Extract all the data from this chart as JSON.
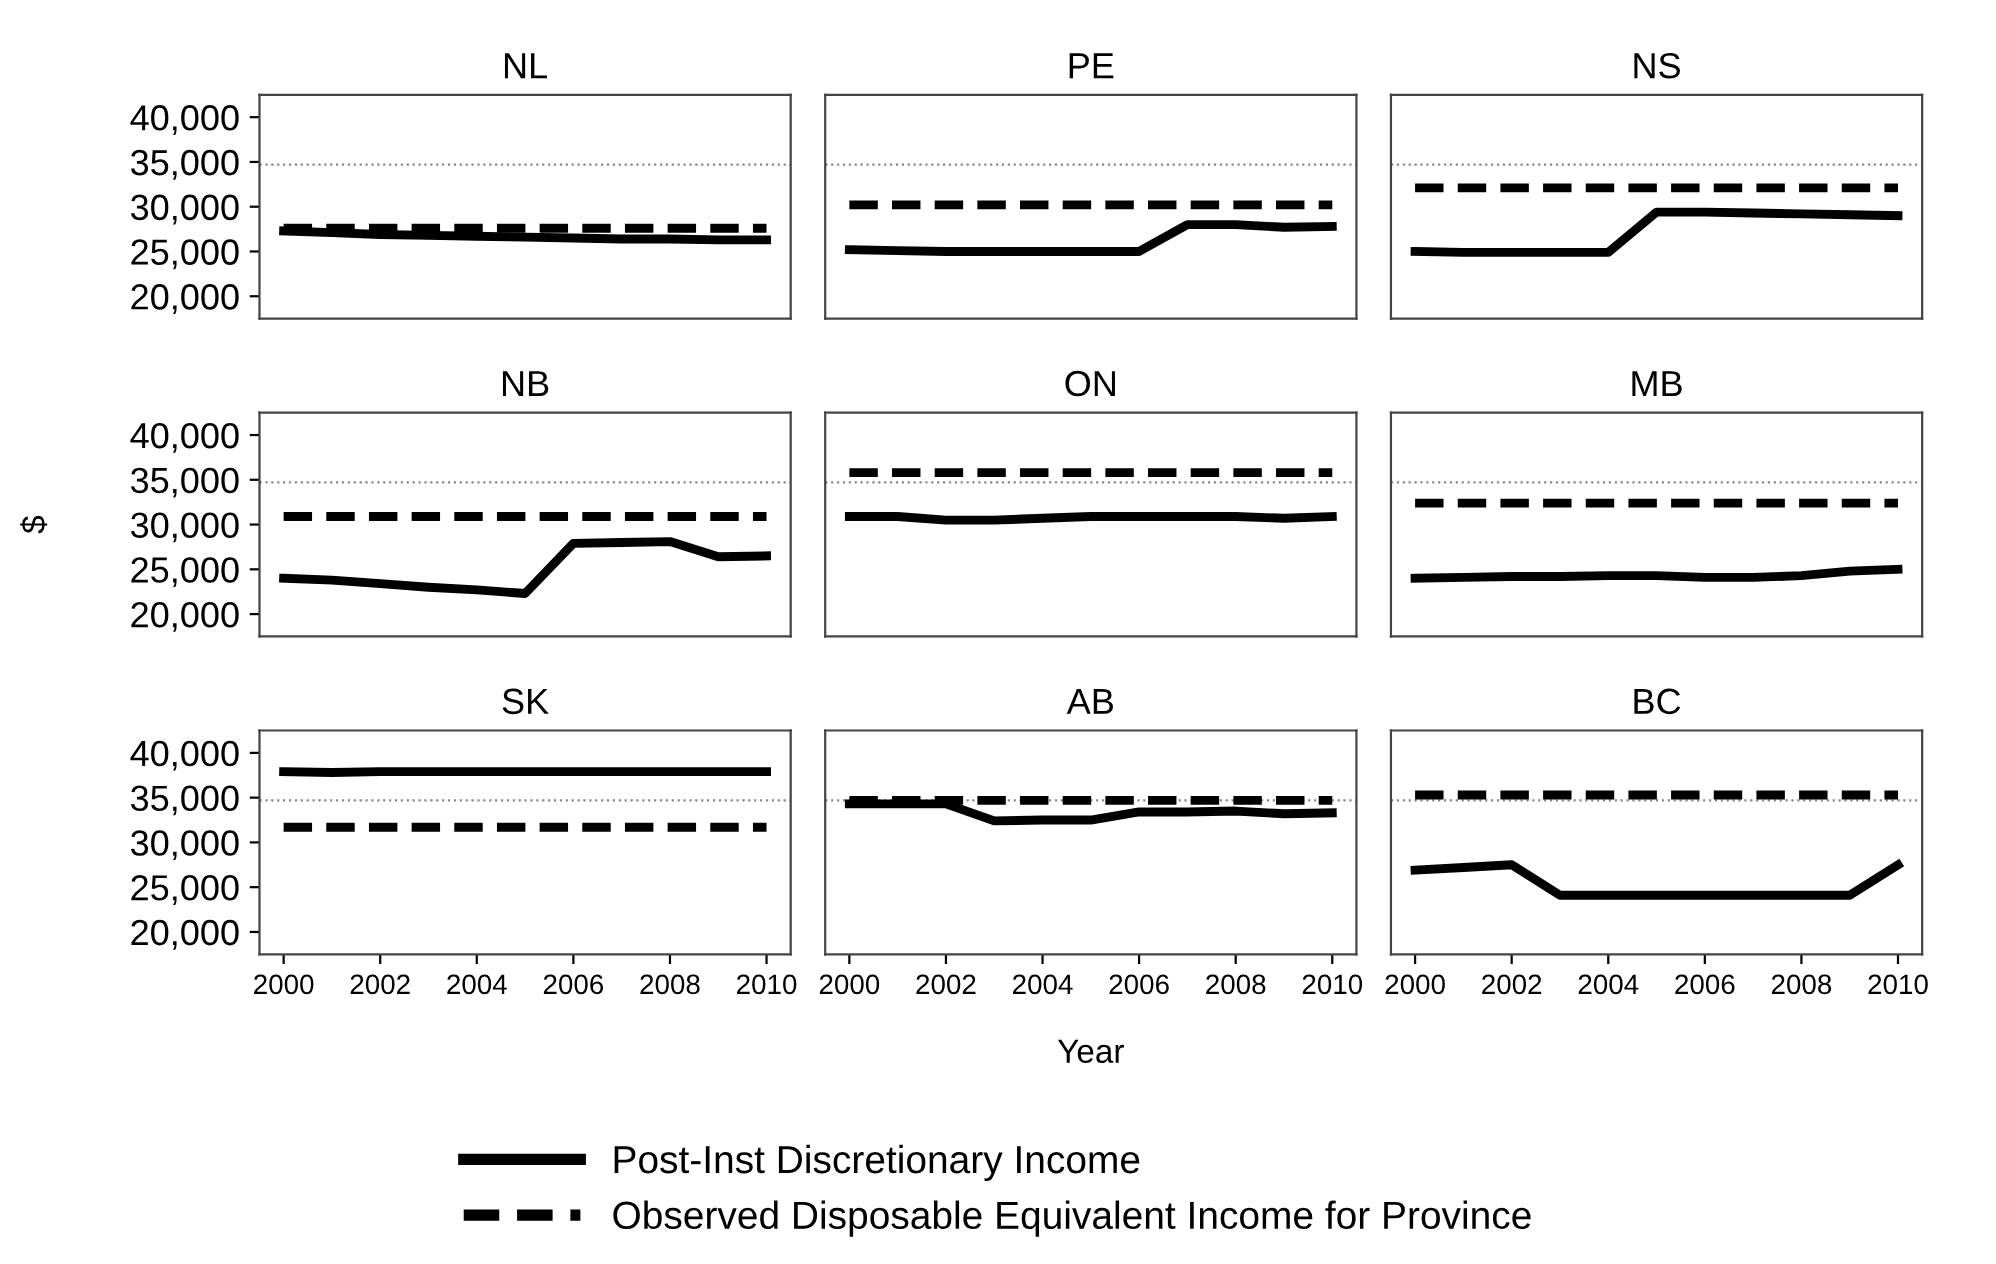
{
  "chart_data": [
    {
      "type": "line",
      "title": "NL",
      "x": [
        2000,
        2001,
        2002,
        2003,
        2004,
        2005,
        2006,
        2007,
        2008,
        2009,
        2010
      ],
      "xlim": [
        1999.5,
        2010.5
      ],
      "xticks": [
        2000,
        2002,
        2004,
        2006,
        2008,
        2010
      ],
      "ylim": [
        17500,
        42500
      ],
      "yticks": [
        {
          "value": 20000,
          "label": "20,000"
        },
        {
          "value": 25000,
          "label": "25,000"
        },
        {
          "value": 30000,
          "label": "30,000"
        },
        {
          "value": 35000,
          "label": "35,000"
        },
        {
          "value": 40000,
          "label": "40,000"
        }
      ],
      "tick_labels": "y",
      "grid": false,
      "legend": "bottom",
      "ref_lines": [
        {
          "axis": "y",
          "value": 34700,
          "color": "#888888",
          "line_style": "dotted"
        }
      ],
      "series": [
        {
          "name": "Post-Inst Discretionary Income",
          "color": "#000000",
          "line_style": "solid",
          "values": [
            27300,
            27100,
            26900,
            26800,
            26700,
            26600,
            26500,
            26400,
            26400,
            26300,
            26300
          ]
        },
        {
          "name": "Observed Disposable Equivalent Income for Province",
          "color": "#000000",
          "line_style": "dashed",
          "values": [
            27600,
            27600,
            27600,
            27600,
            27600,
            27600,
            27600,
            27600,
            27600,
            27600,
            27600
          ]
        }
      ]
    },
    {
      "type": "line",
      "title": "PE",
      "x": [
        2000,
        2001,
        2002,
        2003,
        2004,
        2005,
        2006,
        2007,
        2008,
        2009,
        2010
      ],
      "xlim": [
        1999.5,
        2010.5
      ],
      "xticks": [
        2000,
        2002,
        2004,
        2006,
        2008,
        2010
      ],
      "ylim": [
        17500,
        42500
      ],
      "yticks": [
        {
          "value": 20000,
          "label": "20,000"
        },
        {
          "value": 25000,
          "label": "25,000"
        },
        {
          "value": 30000,
          "label": "30,000"
        },
        {
          "value": 35000,
          "label": "35,000"
        },
        {
          "value": 40000,
          "label": "40,000"
        }
      ],
      "tick_labels": false,
      "grid": false,
      "legend": "bottom",
      "ref_lines": [
        {
          "axis": "y",
          "value": 34700,
          "color": "#888888",
          "line_style": "dotted"
        }
      ],
      "series": [
        {
          "name": "Post-Inst Discretionary Income",
          "color": "#000000",
          "line_style": "solid",
          "values": [
            25200,
            25100,
            25000,
            25000,
            25000,
            25000,
            25000,
            28000,
            28000,
            27700,
            27800
          ]
        },
        {
          "name": "Observed Disposable Equivalent Income for Province",
          "color": "#000000",
          "line_style": "dashed",
          "values": [
            30200,
            30200,
            30200,
            30200,
            30200,
            30200,
            30200,
            30200,
            30200,
            30200,
            30200
          ]
        }
      ]
    },
    {
      "type": "line",
      "title": "NS",
      "x": [
        2000,
        2001,
        2002,
        2003,
        2004,
        2005,
        2006,
        2007,
        2008,
        2009,
        2010
      ],
      "xlim": [
        1999.5,
        2010.5
      ],
      "xticks": [
        2000,
        2002,
        2004,
        2006,
        2008,
        2010
      ],
      "ylim": [
        17500,
        42500
      ],
      "yticks": [
        {
          "value": 20000,
          "label": "20,000"
        },
        {
          "value": 25000,
          "label": "25,000"
        },
        {
          "value": 30000,
          "label": "30,000"
        },
        {
          "value": 35000,
          "label": "35,000"
        },
        {
          "value": 40000,
          "label": "40,000"
        }
      ],
      "tick_labels": false,
      "grid": false,
      "legend": "bottom",
      "ref_lines": [
        {
          "axis": "y",
          "value": 34700,
          "color": "#888888",
          "line_style": "dotted"
        }
      ],
      "series": [
        {
          "name": "Post-Inst Discretionary Income",
          "color": "#000000",
          "line_style": "solid",
          "values": [
            25000,
            24900,
            24900,
            24900,
            24900,
            29400,
            29400,
            29300,
            29200,
            29100,
            29000
          ]
        },
        {
          "name": "Observed Disposable Equivalent Income for Province",
          "color": "#000000",
          "line_style": "dashed",
          "values": [
            32100,
            32100,
            32100,
            32100,
            32100,
            32100,
            32100,
            32100,
            32100,
            32100,
            32100
          ]
        }
      ]
    },
    {
      "type": "line",
      "title": "NB",
      "ylabel": "$",
      "x": [
        2000,
        2001,
        2002,
        2003,
        2004,
        2005,
        2006,
        2007,
        2008,
        2009,
        2010
      ],
      "xlim": [
        1999.5,
        2010.5
      ],
      "xticks": [
        2000,
        2002,
        2004,
        2006,
        2008,
        2010
      ],
      "ylim": [
        17500,
        42500
      ],
      "yticks": [
        {
          "value": 20000,
          "label": "20,000"
        },
        {
          "value": 25000,
          "label": "25,000"
        },
        {
          "value": 30000,
          "label": "30,000"
        },
        {
          "value": 35000,
          "label": "35,000"
        },
        {
          "value": 40000,
          "label": "40,000"
        }
      ],
      "tick_labels": "y",
      "grid": false,
      "legend": "bottom",
      "ref_lines": [
        {
          "axis": "y",
          "value": 34700,
          "color": "#888888",
          "line_style": "dotted"
        }
      ],
      "series": [
        {
          "name": "Post-Inst Discretionary Income",
          "color": "#000000",
          "line_style": "solid",
          "values": [
            24000,
            23800,
            23400,
            23000,
            22700,
            22300,
            27900,
            28000,
            28100,
            26400,
            26500
          ]
        },
        {
          "name": "Observed Disposable Equivalent Income for Province",
          "color": "#000000",
          "line_style": "dashed",
          "values": [
            30900,
            30900,
            30900,
            30900,
            30900,
            30900,
            30900,
            30900,
            30900,
            30900,
            30900
          ]
        }
      ]
    },
    {
      "type": "line",
      "title": "ON",
      "x": [
        2000,
        2001,
        2002,
        2003,
        2004,
        2005,
        2006,
        2007,
        2008,
        2009,
        2010
      ],
      "xlim": [
        1999.5,
        2010.5
      ],
      "xticks": [
        2000,
        2002,
        2004,
        2006,
        2008,
        2010
      ],
      "ylim": [
        17500,
        42500
      ],
      "yticks": [
        {
          "value": 20000,
          "label": "20,000"
        },
        {
          "value": 25000,
          "label": "25,000"
        },
        {
          "value": 30000,
          "label": "30,000"
        },
        {
          "value": 35000,
          "label": "35,000"
        },
        {
          "value": 40000,
          "label": "40,000"
        }
      ],
      "tick_labels": false,
      "grid": false,
      "legend": "bottom",
      "ref_lines": [
        {
          "axis": "y",
          "value": 34700,
          "color": "#888888",
          "line_style": "dotted"
        }
      ],
      "series": [
        {
          "name": "Post-Inst Discretionary Income",
          "color": "#000000",
          "line_style": "solid",
          "values": [
            30900,
            30900,
            30500,
            30500,
            30700,
            30900,
            30900,
            30900,
            30900,
            30700,
            30900
          ]
        },
        {
          "name": "Observed Disposable Equivalent Income for Province",
          "color": "#000000",
          "line_style": "dashed",
          "values": [
            35800,
            35800,
            35800,
            35800,
            35800,
            35800,
            35800,
            35800,
            35800,
            35800,
            35800
          ]
        }
      ]
    },
    {
      "type": "line",
      "title": "MB",
      "x": [
        2000,
        2001,
        2002,
        2003,
        2004,
        2005,
        2006,
        2007,
        2008,
        2009,
        2010
      ],
      "xlim": [
        1999.5,
        2010.5
      ],
      "xticks": [
        2000,
        2002,
        2004,
        2006,
        2008,
        2010
      ],
      "ylim": [
        17500,
        42500
      ],
      "yticks": [
        {
          "value": 20000,
          "label": "20,000"
        },
        {
          "value": 25000,
          "label": "25,000"
        },
        {
          "value": 30000,
          "label": "30,000"
        },
        {
          "value": 35000,
          "label": "35,000"
        },
        {
          "value": 40000,
          "label": "40,000"
        }
      ],
      "tick_labels": false,
      "grid": false,
      "legend": "bottom",
      "ref_lines": [
        {
          "axis": "y",
          "value": 34700,
          "color": "#888888",
          "line_style": "dotted"
        }
      ],
      "series": [
        {
          "name": "Post-Inst Discretionary Income",
          "color": "#000000",
          "line_style": "solid",
          "values": [
            24000,
            24100,
            24200,
            24200,
            24300,
            24300,
            24100,
            24100,
            24300,
            24800,
            25000
          ]
        },
        {
          "name": "Observed Disposable Equivalent Income for Province",
          "color": "#000000",
          "line_style": "dashed",
          "values": [
            32400,
            32400,
            32400,
            32400,
            32400,
            32400,
            32400,
            32400,
            32400,
            32400,
            32400
          ]
        }
      ]
    },
    {
      "type": "line",
      "title": "SK",
      "x": [
        2000,
        2001,
        2002,
        2003,
        2004,
        2005,
        2006,
        2007,
        2008,
        2009,
        2010
      ],
      "xlim": [
        1999.5,
        2010.5
      ],
      "xticks": [
        2000,
        2002,
        2004,
        2006,
        2008,
        2010
      ],
      "ylim": [
        17500,
        42500
      ],
      "yticks": [
        {
          "value": 20000,
          "label": "20,000"
        },
        {
          "value": 25000,
          "label": "25,000"
        },
        {
          "value": 30000,
          "label": "30,000"
        },
        {
          "value": 35000,
          "label": "35,000"
        },
        {
          "value": 40000,
          "label": "40,000"
        }
      ],
      "grid": false,
      "legend": "bottom",
      "ref_lines": [
        {
          "axis": "y",
          "value": 34700,
          "color": "#888888",
          "line_style": "dotted"
        }
      ],
      "series": [
        {
          "name": "Post-Inst Discretionary Income",
          "color": "#000000",
          "line_style": "solid",
          "values": [
            37900,
            37800,
            37900,
            37900,
            37900,
            37900,
            37900,
            37900,
            37900,
            37900,
            37900
          ]
        },
        {
          "name": "Observed Disposable Equivalent Income for Province",
          "color": "#000000",
          "line_style": "dashed",
          "values": [
            31700,
            31700,
            31700,
            31700,
            31700,
            31700,
            31700,
            31700,
            31700,
            31700,
            31700
          ]
        }
      ]
    },
    {
      "type": "line",
      "title": "AB",
      "xlabel": "Year",
      "x": [
        2000,
        2001,
        2002,
        2003,
        2004,
        2005,
        2006,
        2007,
        2008,
        2009,
        2010
      ],
      "xlim": [
        1999.5,
        2010.5
      ],
      "xticks": [
        2000,
        2002,
        2004,
        2006,
        2008,
        2010
      ],
      "ylim": [
        17500,
        42500
      ],
      "yticks": [
        {
          "value": 20000,
          "label": "20,000"
        },
        {
          "value": 25000,
          "label": "25,000"
        },
        {
          "value": 30000,
          "label": "30,000"
        },
        {
          "value": 35000,
          "label": "35,000"
        },
        {
          "value": 40000,
          "label": "40,000"
        }
      ],
      "tick_labels": "x",
      "grid": false,
      "legend": "bottom",
      "ref_lines": [
        {
          "axis": "y",
          "value": 34700,
          "color": "#888888",
          "line_style": "dotted"
        }
      ],
      "series": [
        {
          "name": "Post-Inst Discretionary Income",
          "color": "#000000",
          "line_style": "solid",
          "values": [
            34300,
            34300,
            34300,
            32400,
            32500,
            32500,
            33400,
            33400,
            33500,
            33200,
            33300
          ]
        },
        {
          "name": "Observed Disposable Equivalent Income for Province",
          "color": "#000000",
          "line_style": "dashed",
          "values": [
            34700,
            34700,
            34700,
            34700,
            34700,
            34700,
            34700,
            34700,
            34700,
            34700,
            34700
          ]
        }
      ]
    },
    {
      "type": "line",
      "title": "BC",
      "x": [
        2000,
        2001,
        2002,
        2003,
        2004,
        2005,
        2006,
        2007,
        2008,
        2009,
        2010
      ],
      "xlim": [
        1999.5,
        2010.5
      ],
      "xticks": [
        2000,
        2002,
        2004,
        2006,
        2008,
        2010
      ],
      "ylim": [
        17500,
        42500
      ],
      "yticks": [
        {
          "value": 20000,
          "label": "20,000"
        },
        {
          "value": 25000,
          "label": "25,000"
        },
        {
          "value": 30000,
          "label": "30,000"
        },
        {
          "value": 35000,
          "label": "35,000"
        },
        {
          "value": 40000,
          "label": "40,000"
        }
      ],
      "tick_labels": "x",
      "grid": false,
      "legend": "bottom",
      "ref_lines": [
        {
          "axis": "y",
          "value": 34700,
          "color": "#888888",
          "line_style": "dotted"
        }
      ],
      "series": [
        {
          "name": "Post-Inst Discretionary Income",
          "color": "#000000",
          "line_style": "solid",
          "values": [
            26900,
            27200,
            27500,
            24100,
            24100,
            24100,
            24100,
            24100,
            24100,
            24100,
            27500
          ]
        },
        {
          "name": "Observed Disposable Equivalent Income for Province",
          "color": "#000000",
          "line_style": "dashed",
          "values": [
            35300,
            35300,
            35300,
            35300,
            35300,
            35300,
            35300,
            35300,
            35300,
            35300,
            35300
          ]
        }
      ]
    }
  ]
}
